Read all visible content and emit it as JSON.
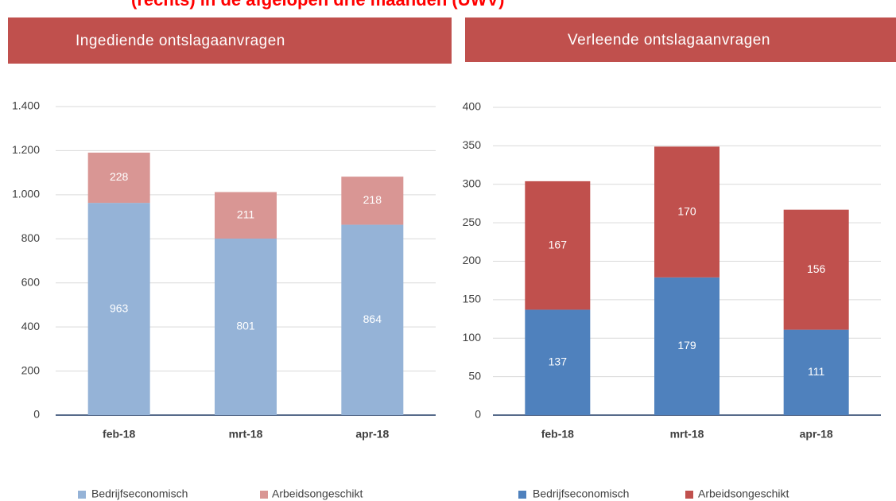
{
  "header": "(rechts) in de afgelopen drie maanden (UWV)",
  "chart_data": [
    {
      "type": "stacked_bar",
      "title": "Ingediende ontslagaanvragen",
      "categories": [
        "feb-18",
        "mrt-18",
        "apr-18"
      ],
      "series": [
        {
          "name": "Bedrijfseconomisch",
          "color": "#95b3d7",
          "values": [
            963,
            801,
            864
          ]
        },
        {
          "name": "Arbeidsongeschikt",
          "color": "#d99694",
          "values": [
            228,
            211,
            218
          ]
        }
      ],
      "ylim": [
        0,
        1400
      ],
      "yticks": [
        0,
        200,
        400,
        600,
        800,
        {
          "value": 1000,
          "label": "1.000"
        },
        {
          "value": 1200,
          "label": "1.200"
        },
        {
          "value": 1400,
          "label": "1.400"
        }
      ],
      "grid": true
    },
    {
      "type": "stacked_bar",
      "title": "Verleende ontslagaanvragen",
      "categories": [
        "feb-18",
        "mrt-18",
        "apr-18"
      ],
      "series": [
        {
          "name": "Bedrijfseconomisch",
          "color": "#4f81bd",
          "values": [
            137,
            179,
            111
          ]
        },
        {
          "name": "Arbeidsongeschikt",
          "color": "#c0504d",
          "values": [
            167,
            170,
            156
          ]
        }
      ],
      "ylim": [
        0,
        400
      ],
      "yticks": [
        0,
        50,
        100,
        150,
        200,
        250,
        300,
        350,
        400
      ],
      "grid": true
    }
  ]
}
